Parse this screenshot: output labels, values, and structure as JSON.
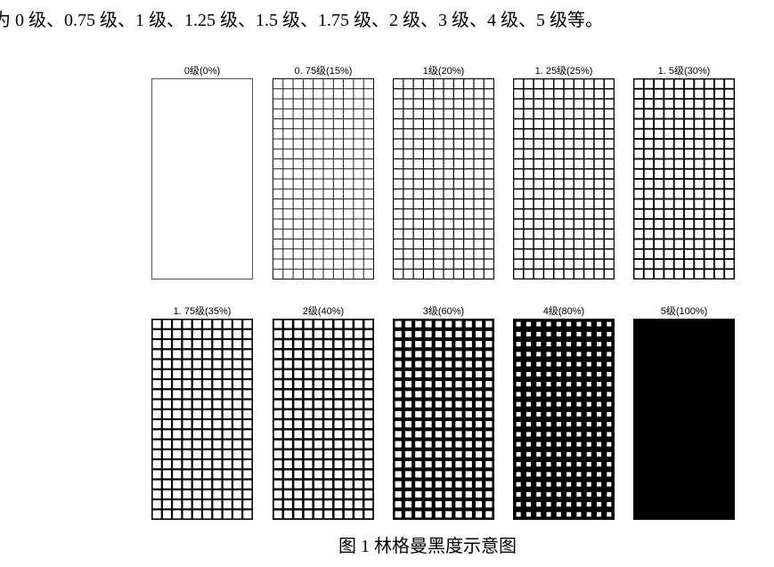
{
  "intro_text": "为 0 级、0.75 级、1 级、1.25 级、1.5 级、1.75 级、2 级、3 级、4 级、5 级等。",
  "figure": {
    "grid_columns": 10,
    "grid_rows": 20,
    "panels": [
      {
        "label": "0级(0%)",
        "blackness_percent": 0
      },
      {
        "label": "0. 75级(15%)",
        "blackness_percent": 15
      },
      {
        "label": "1级(20%)",
        "blackness_percent": 20
      },
      {
        "label": "1. 25级(25%)",
        "blackness_percent": 25
      },
      {
        "label": "1. 5级(30%)",
        "blackness_percent": 30
      },
      {
        "label": "1. 75级(35%)",
        "blackness_percent": 35
      },
      {
        "label": "2级(40%)",
        "blackness_percent": 40
      },
      {
        "label": "3级(60%)",
        "blackness_percent": 60
      },
      {
        "label": "4级(80%)",
        "blackness_percent": 80
      },
      {
        "label": "5级(100%)",
        "blackness_percent": 100
      }
    ],
    "caption": "图 1  林格曼黑度示意图"
  }
}
